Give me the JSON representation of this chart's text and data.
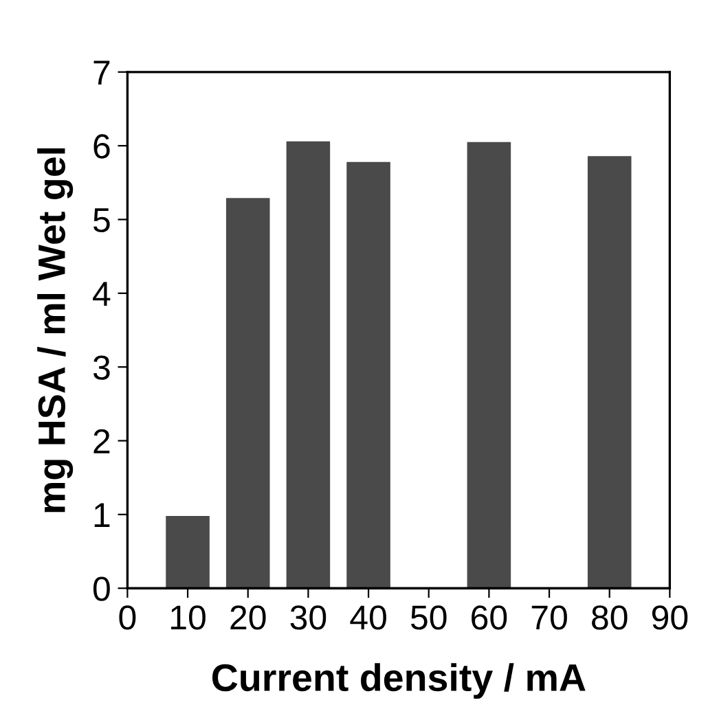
{
  "chart_data": {
    "type": "bar",
    "xlabel": "Current density / mA",
    "ylabel": "mg HSA / ml Wet gel",
    "x": [
      10,
      20,
      30,
      40,
      60,
      80
    ],
    "values": [
      0.97,
      5.28,
      6.05,
      5.77,
      6.04,
      5.85
    ],
    "color": "#4a4a4a",
    "xlim": [
      0,
      90
    ],
    "xticks": [
      0,
      10,
      20,
      30,
      40,
      50,
      60,
      70,
      80,
      90
    ],
    "ylim": [
      0,
      7
    ],
    "yticks": [
      0,
      1,
      2,
      3,
      4,
      5,
      6,
      7
    ],
    "grid": false
  }
}
